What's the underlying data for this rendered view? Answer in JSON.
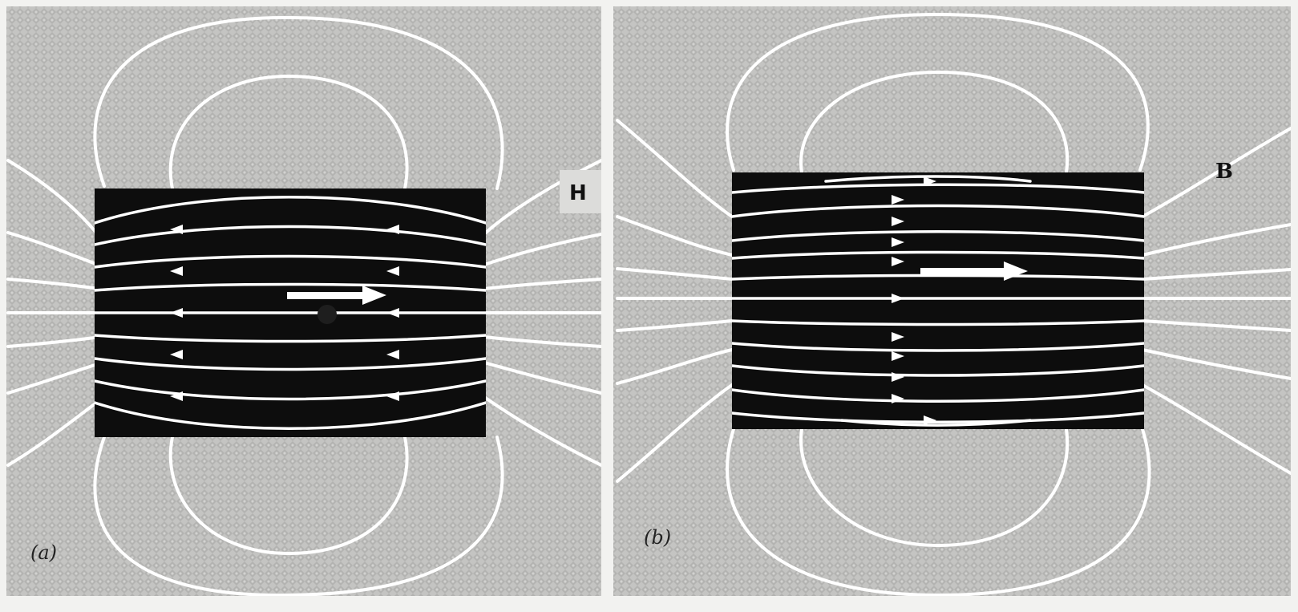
{
  "panels": [
    {
      "id": "a",
      "field_label": "H",
      "sublabel": "(a)",
      "magnetization_arrow": "right",
      "interior_arrow_direction": "left"
    },
    {
      "id": "b",
      "field_label": "B",
      "sublabel": "(b)",
      "magnetization_arrow": "right",
      "interior_arrow_direction": "right"
    }
  ],
  "colors": {
    "background_tone": "#bfbfbd",
    "magnet": "#0d0d0d",
    "lines": "#ffffff"
  }
}
